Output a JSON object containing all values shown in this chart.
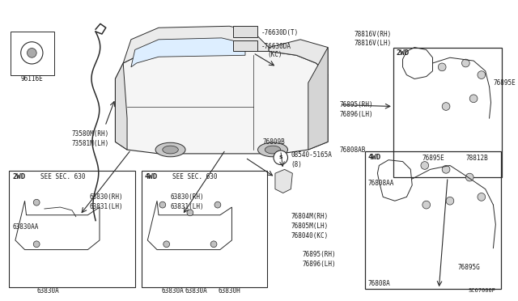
{
  "bg_color": "#ffffff",
  "fig_width": 6.4,
  "fig_height": 3.72,
  "line_color": "#2a2a2a",
  "text_color": "#1a1a1a",
  "labels": {
    "96116E": [
      0.055,
      0.785
    ],
    "73580M_RH": "73580M(RH)",
    "73581M_LH": "73581M(LH)",
    "76630D_T": "-76630D(T)",
    "76630DA_KC": "-76630DA\n  (KC)",
    "78816V_RH": "78816V(RH)",
    "78816V_LH": "78816V(LH)",
    "76895_RH1": "76895(RH)",
    "76896_LH1": "76896(LH)",
    "76895E_1": "76895E",
    "76808AB": "76808AB",
    "08540": "08540-5165A",
    "8": "(8)",
    "76809B": "76809B",
    "63830_RH1": "63830(RH)",
    "63831_LH1": "63831(LH)",
    "63830_RH2": "63830(RH)",
    "63831_LH2": "63831(LH)",
    "76804M_RH": "76804M(RH)",
    "76805M_LH": "76805M(LH)",
    "768040_KC": "768040(KC)",
    "76895E_2": "76895E",
    "78812B": "78812B",
    "76808AA": "76808AA",
    "76895_RH2": "76895(RH)",
    "76896_LH2": "76896(LH)",
    "76808A": "76808A",
    "76895G": "76895G",
    "2WD_1": "2WD",
    "4WD_1": "4WD",
    "SEE_630_1": "SEE SEC. 630",
    "2WD_2": "2WD",
    "4WD_2": "4WD",
    "SEE_630_2": "SEE SEC. 630",
    "63830AA": "63830AA",
    "63830A_1": "63830A",
    "63830A_2": "63830A",
    "63830H": "63830H",
    "ref": "SC67000P"
  },
  "fs": 5.5
}
